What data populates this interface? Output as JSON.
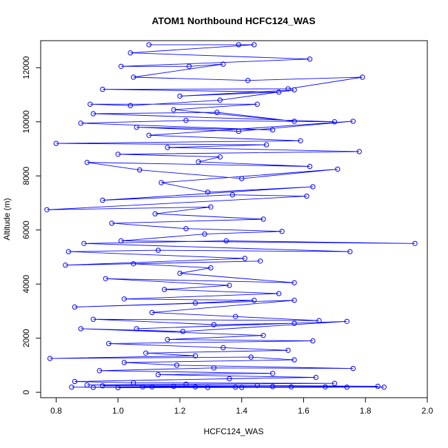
{
  "chart_data": {
    "type": "line",
    "title": "ATOM1 Northbound HCFC124_WAS",
    "xlabel": "HCFC124_WAS",
    "ylabel": "Altitude (m)",
    "xlim": [
      0.75,
      2.0
    ],
    "ylim": [
      -200,
      13000
    ],
    "x_ticks": [
      0.8,
      1.0,
      1.2,
      1.4,
      1.6,
      1.8,
      2.0
    ],
    "y_ticks": [
      0,
      2000,
      4000,
      6000,
      8000,
      10000,
      12000
    ],
    "x_tick_labels": [
      "0.8",
      "1.0",
      "1.2",
      "1.4",
      "1.6",
      "1.8",
      "2.0"
    ],
    "y_tick_labels": [
      "0",
      "2000",
      "4000",
      "6000",
      "8000",
      "10000",
      "12000"
    ],
    "grid": false,
    "series_color": "#0000ff",
    "marker": "open-circle",
    "series": [
      {
        "points": [
          [
            1.1,
            12850
          ],
          [
            1.39,
            12850
          ],
          [
            1.44,
            12850
          ],
          [
            1.04,
            12550
          ],
          [
            1.62,
            12320
          ],
          [
            1.01,
            12050
          ],
          [
            1.23,
            12050
          ],
          [
            1.34,
            12130
          ],
          [
            1.05,
            11650
          ],
          [
            1.42,
            11530
          ],
          [
            1.79,
            11650
          ],
          [
            1.55,
            11220
          ],
          [
            0.95,
            11200
          ],
          [
            1.52,
            11100
          ],
          [
            1.2,
            10950
          ],
          [
            1.57,
            11180
          ],
          [
            1.33,
            10800
          ],
          [
            1.04,
            10600
          ],
          [
            0.91,
            10650
          ],
          [
            1.45,
            10650
          ],
          [
            1.18,
            10450
          ],
          [
            1.57,
            10020
          ],
          [
            1.32,
            10350
          ],
          [
            0.92,
            10300
          ],
          [
            1.7,
            10000
          ],
          [
            1.22,
            10050
          ],
          [
            0.88,
            9950
          ],
          [
            1.5,
            9700
          ],
          [
            1.06,
            9800
          ],
          [
            1.39,
            9650
          ],
          [
            1.76,
            10020
          ],
          [
            1.1,
            9500
          ],
          [
            1.59,
            9300
          ],
          [
            0.8,
            9200
          ],
          [
            1.48,
            9150
          ],
          [
            1.16,
            9050
          ],
          [
            1.78,
            8900
          ],
          [
            1.0,
            8800
          ],
          [
            1.33,
            8700
          ],
          [
            1.26,
            8520
          ],
          [
            1.62,
            8350
          ],
          [
            0.9,
            8500
          ],
          [
            1.07,
            8220
          ],
          [
            1.4,
            7900
          ],
          [
            1.71,
            8250
          ],
          [
            1.14,
            7750
          ],
          [
            1.29,
            7400
          ],
          [
            1.63,
            7600
          ],
          [
            0.95,
            7100
          ],
          [
            1.37,
            7300
          ],
          [
            1.61,
            7250
          ],
          [
            0.77,
            6750
          ],
          [
            1.3,
            6850
          ],
          [
            1.12,
            6600
          ],
          [
            1.47,
            6400
          ],
          [
            0.98,
            6250
          ],
          [
            1.22,
            6050
          ],
          [
            1.53,
            5950
          ],
          [
            1.28,
            5850
          ],
          [
            1.01,
            5600
          ],
          [
            1.96,
            5500
          ],
          [
            1.35,
            5600
          ],
          [
            0.89,
            5500
          ],
          [
            1.75,
            5200
          ],
          [
            1.13,
            5250
          ],
          [
            0.84,
            5200
          ],
          [
            1.41,
            4950
          ],
          [
            0.83,
            4700
          ],
          [
            1.46,
            4850
          ],
          [
            1.05,
            4750
          ],
          [
            1.3,
            4600
          ],
          [
            1.2,
            4400
          ],
          [
            1.57,
            4050
          ],
          [
            0.96,
            4200
          ],
          [
            1.36,
            3950
          ],
          [
            1.15,
            3800
          ],
          [
            1.52,
            3650
          ],
          [
            1.02,
            3450
          ],
          [
            1.44,
            3400
          ],
          [
            1.25,
            3300
          ],
          [
            0.86,
            3150
          ],
          [
            1.57,
            3400
          ],
          [
            1.11,
            2950
          ],
          [
            1.38,
            2800
          ],
          [
            1.65,
            2650
          ],
          [
            0.92,
            2700
          ],
          [
            1.31,
            2500
          ],
          [
            1.57,
            2550
          ],
          [
            1.06,
            2350
          ],
          [
            1.74,
            2620
          ],
          [
            1.21,
            2250
          ],
          [
            0.88,
            2350
          ],
          [
            1.47,
            2100
          ],
          [
            1.16,
            1950
          ],
          [
            1.63,
            1900
          ],
          [
            0.97,
            1800
          ],
          [
            1.34,
            1650
          ],
          [
            1.55,
            1550
          ],
          [
            1.09,
            1450
          ],
          [
            1.25,
            1350
          ],
          [
            0.78,
            1250
          ],
          [
            1.43,
            1300
          ],
          [
            1.57,
            1200
          ],
          [
            1.02,
            1100
          ],
          [
            1.19,
            1000
          ],
          [
            1.76,
            880
          ],
          [
            1.31,
            900
          ],
          [
            0.94,
            800
          ],
          [
            1.5,
            700
          ],
          [
            1.13,
            650
          ],
          [
            1.64,
            550
          ],
          [
            1.36,
            500
          ],
          [
            0.86,
            400
          ],
          [
            1.05,
            350
          ],
          [
            1.7,
            330
          ],
          [
            1.22,
            300
          ],
          [
            0.9,
            270
          ],
          [
            1.45,
            250
          ],
          [
            1.84,
            220
          ],
          [
            1.11,
            200
          ],
          [
            1.56,
            200
          ],
          [
            0.85,
            190
          ],
          [
            1.29,
            180
          ],
          [
            1.86,
            190
          ],
          [
            1.0,
            170
          ],
          [
            1.4,
            180
          ],
          [
            1.67,
            200
          ],
          [
            1.18,
            220
          ],
          [
            0.95,
            240
          ],
          [
            1.5,
            210
          ],
          [
            1.08,
            200
          ],
          [
            1.74,
            190
          ],
          [
            1.25,
            200
          ],
          [
            1.38,
            190
          ],
          [
            0.92,
            180
          ]
        ]
      }
    ]
  }
}
